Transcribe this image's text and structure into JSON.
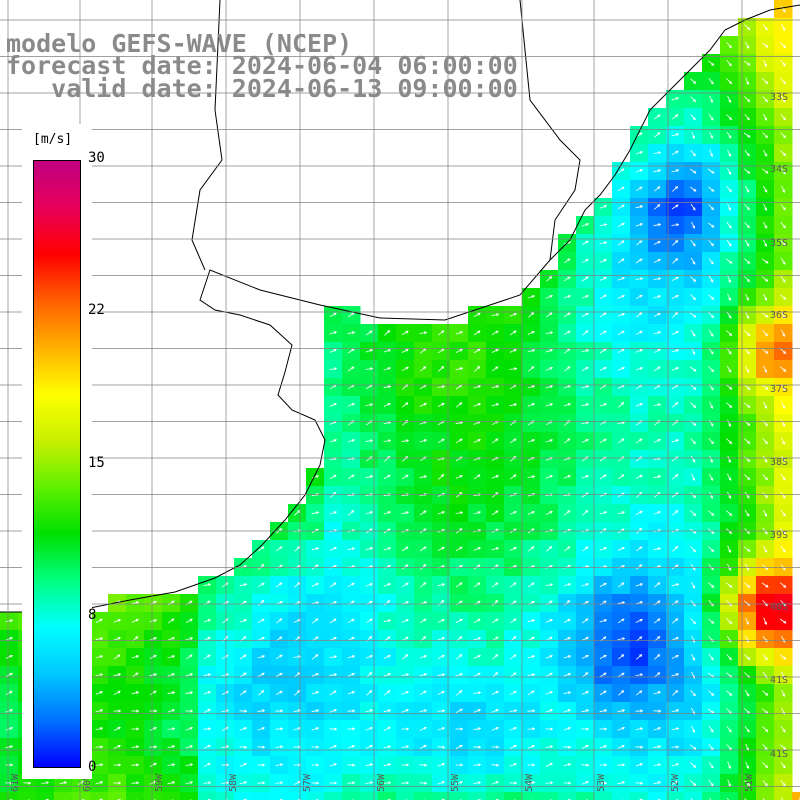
{
  "title": {
    "line1": "modelo GEFS-WAVE (NCEP)",
    "line2": "forecast date: 2024-06-04 06:00:00",
    "line3": "   valid date: 2024-06-13 09:00:00"
  },
  "colorbar": {
    "unit": "[m/s]",
    "ticks": [
      "30",
      "22",
      "15",
      "8",
      "0"
    ],
    "tick_values": [
      30,
      22,
      15,
      8,
      0
    ],
    "range": [
      0,
      30
    ],
    "colors": [
      "#0000ff",
      "#0070ff",
      "#00c8ff",
      "#00ffff",
      "#00ff80",
      "#00e000",
      "#60f000",
      "#c8f000",
      "#ffff00",
      "#ffb000",
      "#ff6000",
      "#ff0000",
      "#e8005a",
      "#c00080"
    ]
  },
  "latitude_labels": [
    "33S",
    "34S",
    "35S",
    "36S",
    "37S",
    "38S",
    "39S",
    "40S",
    "41S"
  ],
  "longitude_labels": [
    "61W",
    "60W",
    "59W",
    "58W",
    "57W",
    "56W",
    "55W",
    "54W",
    "53W",
    "52W",
    "51W"
  ],
  "map": {
    "variable": "wind speed and direction",
    "land_color": "#ffffff",
    "grid_color": "#808080",
    "coast_color": "#000000",
    "arrow_color": "#ffffff"
  }
}
